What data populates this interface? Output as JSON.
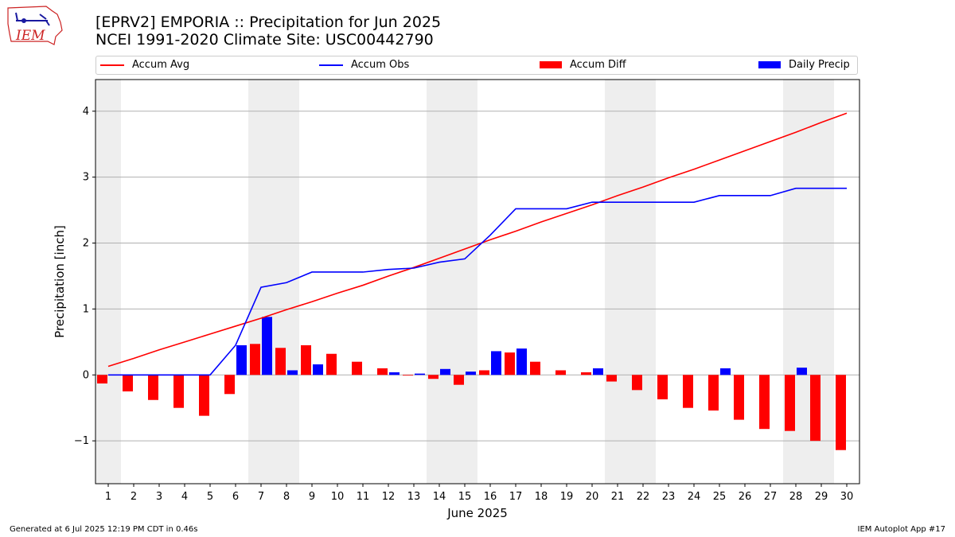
{
  "logo": {
    "text": "IEM"
  },
  "header": {
    "title_line1": "[EPRV2] EMPORIA :: Precipitation for Jun 2025",
    "title_line2": "NCEI 1991-2020 Climate Site: USC00442790"
  },
  "footer": {
    "left": "Generated at 6 Jul 2025 12:19 PM CDT in 0.46s",
    "right": "IEM Autoplot App #17"
  },
  "colors": {
    "avg": "#ff0000",
    "obs": "#0000ff",
    "diff": "#ff0000",
    "daily": "#0000ff",
    "weekend": "#eeeeee",
    "grid": "#b0b0b0"
  },
  "chart_data": {
    "type": "bar",
    "title": "[EPRV2] EMPORIA :: Precipitation for Jun 2025",
    "xlabel": "June 2025",
    "ylabel": "Precipitation [inch]",
    "ylim": [
      -1.65,
      4.48
    ],
    "yticks": [
      -1,
      0,
      1,
      2,
      3,
      4
    ],
    "ytick_labels": [
      "−1",
      "0",
      "1",
      "2",
      "3",
      "4"
    ],
    "x": [
      1,
      2,
      3,
      4,
      5,
      6,
      7,
      8,
      9,
      10,
      11,
      12,
      13,
      14,
      15,
      16,
      17,
      18,
      19,
      20,
      21,
      22,
      23,
      24,
      25,
      26,
      27,
      28,
      29,
      30
    ],
    "legend_position": "top",
    "grid": "horizontal",
    "weekend_shading": [
      [
        1
      ],
      [
        7,
        8
      ],
      [
        14,
        15
      ],
      [
        21,
        22
      ],
      [
        28,
        29
      ]
    ],
    "series": [
      {
        "name": "Accum Avg",
        "type": "line",
        "values": [
          0.13,
          0.25,
          0.38,
          0.5,
          0.62,
          0.74,
          0.86,
          0.99,
          1.11,
          1.24,
          1.36,
          1.5,
          1.63,
          1.77,
          1.91,
          2.05,
          2.18,
          2.32,
          2.45,
          2.58,
          2.72,
          2.85,
          2.99,
          3.12,
          3.26,
          3.4,
          3.54,
          3.68,
          3.83,
          3.97
        ]
      },
      {
        "name": "Accum Obs",
        "type": "line",
        "values": [
          0.0,
          0.0,
          0.0,
          0.0,
          0.0,
          0.45,
          1.33,
          1.4,
          1.56,
          1.56,
          1.56,
          1.6,
          1.62,
          1.71,
          1.76,
          2.12,
          2.52,
          2.52,
          2.52,
          2.62,
          2.62,
          2.62,
          2.62,
          2.62,
          2.72,
          2.72,
          2.72,
          2.83,
          2.83,
          2.83
        ]
      },
      {
        "name": "Accum Diff",
        "type": "bar",
        "values": [
          -0.13,
          -0.25,
          -0.38,
          -0.5,
          -0.62,
          -0.29,
          0.47,
          0.41,
          0.45,
          0.32,
          0.2,
          0.1,
          -0.01,
          -0.06,
          -0.15,
          0.07,
          0.34,
          0.2,
          0.07,
          0.04,
          -0.1,
          -0.23,
          -0.37,
          -0.5,
          -0.54,
          -0.68,
          -0.82,
          -0.85,
          -1.0,
          -1.14
        ]
      },
      {
        "name": "Daily Precip",
        "type": "bar",
        "values": [
          0.0,
          0.0,
          0.0,
          0.0,
          0.0,
          0.45,
          0.88,
          0.07,
          0.16,
          0.0,
          0.0,
          0.04,
          0.02,
          0.09,
          0.05,
          0.36,
          0.4,
          0.0,
          0.0,
          0.1,
          0.0,
          0.0,
          0.0,
          0.0,
          0.1,
          0.0,
          0.0,
          0.11,
          0.0,
          0.0
        ]
      }
    ]
  }
}
